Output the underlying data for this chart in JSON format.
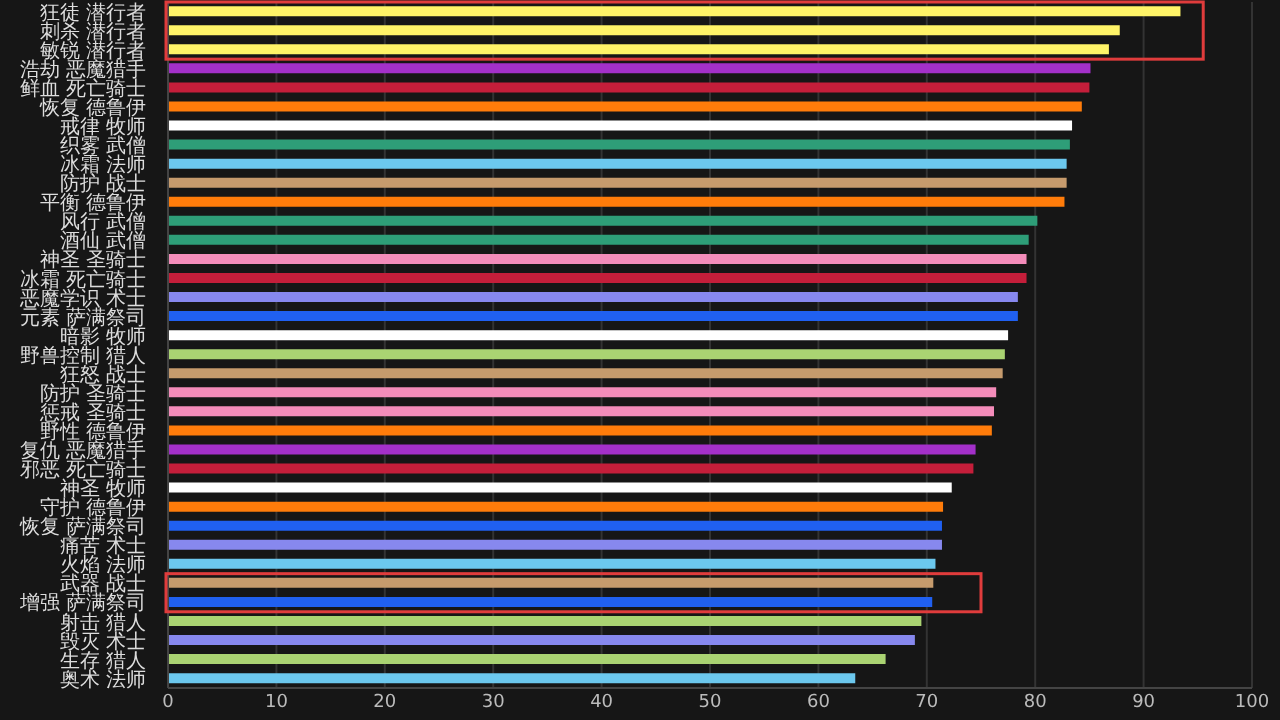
{
  "chart_data": {
    "type": "bar",
    "orientation": "horizontal",
    "categories": [
      "狂徒 潜行者",
      "刺杀 潜行者",
      "敏锐 潜行者",
      "浩劫 恶魔猎手",
      "鲜血 死亡骑士",
      "恢复 德鲁伊",
      "戒律 牧师",
      "织雾 武僧",
      "冰霜 法师",
      "防护 战士",
      "平衡 德鲁伊",
      "风行 武僧",
      "酒仙 武僧",
      "神圣 圣骑士",
      "冰霜 死亡骑士",
      "恶魔学识 术士",
      "元素 萨满祭司",
      "暗影 牧师",
      "野兽控制 猎人",
      "狂怒 战士",
      "防护 圣骑士",
      "惩戒 圣骑士",
      "野性 德鲁伊",
      "复仇 恶魔猎手",
      "邪恶 死亡骑士",
      "神圣 牧师",
      "守护 德鲁伊",
      "恢复 萨满祭司",
      "痛苦 术士",
      "火焰 法师",
      "武器 战士",
      "增强 萨满祭司",
      "射击 猎人",
      "毁灭 术士",
      "生存 猎人",
      "奥术 法师"
    ],
    "values": [
      93.4,
      87.8,
      86.8,
      85.1,
      85.0,
      84.3,
      83.4,
      83.2,
      82.9,
      82.9,
      82.7,
      80.2,
      79.4,
      79.2,
      79.2,
      78.4,
      78.4,
      77.5,
      77.2,
      77.0,
      76.4,
      76.2,
      76.0,
      74.5,
      74.3,
      72.3,
      71.5,
      71.4,
      71.4,
      70.8,
      70.6,
      70.5,
      69.5,
      68.9,
      66.2,
      63.4
    ],
    "colors": [
      "#fff468",
      "#fff468",
      "#fff468",
      "#a330c9",
      "#c41e3a",
      "#ff7c0a",
      "#ffffff",
      "#2e9e78",
      "#6cc8ee",
      "#c69b6d",
      "#ff7c0a",
      "#2e9e78",
      "#2e9e78",
      "#f48cba",
      "#c41e3a",
      "#8788ee",
      "#2060f0",
      "#ffffff",
      "#aad372",
      "#c69b6d",
      "#f48cba",
      "#f48cba",
      "#ff7c0a",
      "#a330c9",
      "#c41e3a",
      "#ffffff",
      "#ff7c0a",
      "#2060f0",
      "#8788ee",
      "#6cc8ee",
      "#c69b6d",
      "#2060f0",
      "#aad372",
      "#8788ee",
      "#aad372",
      "#6cc8ee"
    ],
    "xlim": [
      0,
      100
    ],
    "xticks": [
      0,
      10,
      20,
      30,
      40,
      50,
      60,
      70,
      80,
      90,
      100
    ],
    "grid": "x"
  }
}
